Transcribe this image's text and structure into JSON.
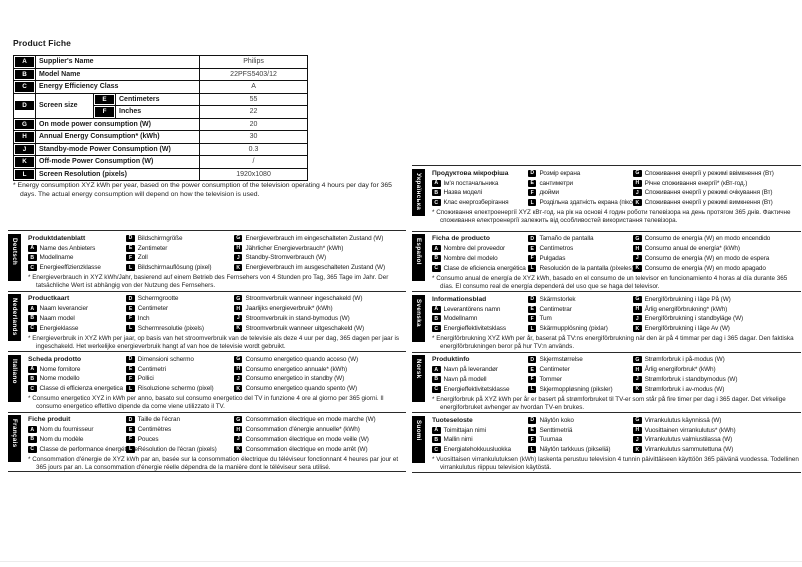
{
  "page": {
    "title": "Product Fiche"
  },
  "colors": {
    "badge_bg": "#000000",
    "badge_text": "#ffffff",
    "table_border": "#111111"
  },
  "fiche_table": {
    "rows": [
      {
        "key": "A",
        "label": "Supplier's Name",
        "value": "Philips"
      },
      {
        "key": "B",
        "label": "Model Name",
        "value": "22PFS5403/12"
      },
      {
        "key": "C",
        "label": "Energy Efficiency Class",
        "value": "A"
      },
      {
        "key": "D",
        "label": "Screen size",
        "sub": [
          {
            "key": "E",
            "label": "Centimeters",
            "value": "55"
          },
          {
            "key": "F",
            "label": "Inches",
            "value": "22"
          }
        ]
      },
      {
        "key": "G",
        "label": "On mode power consumption (W)",
        "value": "20"
      },
      {
        "key": "H",
        "label": "Annual Energy Consumption* (kWh)",
        "value": "30"
      },
      {
        "key": "J",
        "label": "Standby-mode Power Consumption (W)",
        "value": "0.3"
      },
      {
        "key": "K",
        "label": "Off-mode Power Consumption (W)",
        "value": "/"
      },
      {
        "key": "L",
        "label": "Screen Resolution (pixels)",
        "value": "1920x1080"
      }
    ],
    "footnote": "* Energy consumption XYZ kWh per year, based on the power consumption of the television operating 4 hours per day for 365 days. The actual energy consumption will depend on how the television is used."
  },
  "sections": {
    "left": [
      {
        "lang": "Deutsch",
        "title": "Produktdatenblatt",
        "col1": [
          {
            "key": "A",
            "label": "Name des Anbieters"
          },
          {
            "key": "B",
            "label": "Modellname"
          },
          {
            "key": "C",
            "label": "Energieeffizienzklasse"
          }
        ],
        "col2": [
          {
            "key": "D",
            "label": "Bildschirmgröße"
          },
          {
            "key": "E",
            "label": "Zentimeter"
          },
          {
            "key": "F",
            "label": "Zoll"
          },
          {
            "key": "L",
            "label": "Bildschirmauflösung (pixel)"
          }
        ],
        "col3": [
          {
            "key": "G",
            "label": "Energieverbrauch im eingeschalteten Zustand (W)"
          },
          {
            "key": "H",
            "label": "Jährlicher Energieverbrauch* (kWh)"
          },
          {
            "key": "J",
            "label": "Standby-Stromverbrauch (W)"
          },
          {
            "key": "K",
            "label": "Energieverbrauch im ausgeschalteten Zustand (W)"
          }
        ],
        "footnote": "* Energieverbrauch in XYZ kWh/Jahr, basierend auf einem Betrieb des Fernsehers von 4 Stunden pro Tag, 365 Tage im Jahr. Der tatsächliche Wert ist abhängig von der Nutzung des Fernsehers."
      },
      {
        "lang": "Nederlands",
        "title": "Productkaart",
        "col1": [
          {
            "key": "A",
            "label": "Naam leverancier"
          },
          {
            "key": "B",
            "label": "Naam model"
          },
          {
            "key": "C",
            "label": "Energieklasse"
          }
        ],
        "col2": [
          {
            "key": "D",
            "label": "Schermgrootte"
          },
          {
            "key": "E",
            "label": "Centimeter"
          },
          {
            "key": "F",
            "label": "Inch"
          },
          {
            "key": "L",
            "label": "Schermresolutie (pixels)"
          }
        ],
        "col3": [
          {
            "key": "G",
            "label": "Stroomverbruik wanneer ingeschakeld (W)"
          },
          {
            "key": "H",
            "label": "Jaarlijks energieverbruik* (kWh)"
          },
          {
            "key": "J",
            "label": "Stroomverbruik in stand-bymodus (W)"
          },
          {
            "key": "K",
            "label": "Stroomverbruik wanneer uitgeschakeld (W)"
          }
        ],
        "footnote": "* Energieverbruik in XYZ kWh per jaar, op basis van het stroomverbruik van de televisie als deze 4 uur per dag, 365 dagen per jaar is ingeschakeld. Het werkelijke energieverbruik hangt af van hoe de televisie wordt gebruikt."
      },
      {
        "lang": "Italiano",
        "title": "Scheda prodotto",
        "col1": [
          {
            "key": "A",
            "label": "Nome fornitore"
          },
          {
            "key": "B",
            "label": "Nome modello"
          },
          {
            "key": "C",
            "label": "Classe di efficienza energetica"
          }
        ],
        "col2": [
          {
            "key": "D",
            "label": "Dimensioni schermo"
          },
          {
            "key": "E",
            "label": "Centimetri"
          },
          {
            "key": "F",
            "label": "Pollici"
          },
          {
            "key": "L",
            "label": "Risoluzione schermo (pixel)"
          }
        ],
        "col3": [
          {
            "key": "G",
            "label": "Consumo energetico quando acceso (W)"
          },
          {
            "key": "H",
            "label": "Consumo energetico annuale* (kWh)"
          },
          {
            "key": "J",
            "label": "Consumo energetico in standby (W)"
          },
          {
            "key": "K",
            "label": "Consumo energetico quando spento (W)"
          }
        ],
        "footnote": "* Consumo energetico XYZ in kWh per anno, basato sul consumo energetico del TV in funzione 4 ore al giorno per 365 giorni. Il consumo energetico effettivo dipende da come viene utilizzato il TV."
      },
      {
        "lang": "Français",
        "title": "Fiche produit",
        "col1": [
          {
            "key": "A",
            "label": "Nom du fournisseur"
          },
          {
            "key": "B",
            "label": "Nom du modèle"
          },
          {
            "key": "C",
            "label": "Classe de performance énergétique"
          }
        ],
        "col2": [
          {
            "key": "D",
            "label": "Taille de l'écran"
          },
          {
            "key": "E",
            "label": "Centimètres"
          },
          {
            "key": "F",
            "label": "Pouces"
          },
          {
            "key": "L",
            "label": "Résolution de l'écran (pixels)"
          }
        ],
        "col3": [
          {
            "key": "G",
            "label": "Consommation électrique en mode marche (W)"
          },
          {
            "key": "H",
            "label": "Consommation d'énergie annuelle* (kWh)"
          },
          {
            "key": "J",
            "label": "Consommation électrique en mode veille (W)"
          },
          {
            "key": "K",
            "label": "Consommation électrique en mode arrêt (W)"
          }
        ],
        "footnote": "* Consommation d'énergie de XYZ kWh par an, basée sur la consommation électrique du téléviseur fonctionnant 4 heures par jour et 365 jours par an. La consommation d'énergie réelle dépendra de la manière dont le téléviseur sera utilisé."
      }
    ],
    "right": [
      {
        "lang": "Українська",
        "title": "Продуктова мікрофіша",
        "col1": [
          {
            "key": "A",
            "label": "Ім'я постачальника"
          },
          {
            "key": "B",
            "label": "Назва моделі"
          },
          {
            "key": "C",
            "label": "Клас енергозберігання"
          }
        ],
        "col2": [
          {
            "key": "D",
            "label": "Розмір екрана"
          },
          {
            "key": "E",
            "label": "сантиметри"
          },
          {
            "key": "F",
            "label": "дюйми"
          },
          {
            "key": "L",
            "label": "Роздільна здатність екрана (пікселі)"
          }
        ],
        "col3": [
          {
            "key": "G",
            "label": "Споживання енергії у режимі ввімкнення (Вт)"
          },
          {
            "key": "H",
            "label": "Річне споживання енергії* (кВт-год.)"
          },
          {
            "key": "J",
            "label": "Споживання енергії у режимі очікування (Вт)"
          },
          {
            "key": "K",
            "label": "Споживання енергії у режимі вимкнення (Вт)"
          }
        ],
        "footnote": "* Споживання електроенергії XYZ кВт-год. на рік на основі 4 годин роботи телевізора на день протягом 365 днів. Фактичне споживання електроенергії залежить від особливостей використання телевізора."
      },
      {
        "lang": "Español",
        "title": "Ficha de producto",
        "col1": [
          {
            "key": "A",
            "label": "Nombre del proveedor"
          },
          {
            "key": "B",
            "label": "Nombre del modelo"
          },
          {
            "key": "C",
            "label": "Clase de eficiencia energética"
          }
        ],
        "col2": [
          {
            "key": "D",
            "label": "Tamaño de pantalla"
          },
          {
            "key": "E",
            "label": "Centímetros"
          },
          {
            "key": "F",
            "label": "Pulgadas"
          },
          {
            "key": "L",
            "label": "Resolución de la pantalla (píxeles)"
          }
        ],
        "col3": [
          {
            "key": "G",
            "label": "Consumo de energía (W) en modo encendido"
          },
          {
            "key": "H",
            "label": "Consumo anual de energía* (kWh)"
          },
          {
            "key": "J",
            "label": "Consumo de energía (W) en modo de espera"
          },
          {
            "key": "K",
            "label": "Consumo de energía (W) en modo apagado"
          }
        ],
        "footnote": "* Consumo anual de energía de XYZ kWh, basado en el consumo de un televisor en funcionamiento 4 horas al día durante 365 días. El consumo real de energía dependerá del uso que se haga del televisor."
      },
      {
        "lang": "Svenska",
        "title": "Informationsblad",
        "col1": [
          {
            "key": "A",
            "label": "Leverantörens namn"
          },
          {
            "key": "B",
            "label": "Modellnamn"
          },
          {
            "key": "C",
            "label": "Energieffektivitetsklass"
          }
        ],
        "col2": [
          {
            "key": "D",
            "label": "Skärmstorlek"
          },
          {
            "key": "E",
            "label": "Centimetrar"
          },
          {
            "key": "F",
            "label": "Tum"
          },
          {
            "key": "L",
            "label": "Skärmupplösning (pixlar)"
          }
        ],
        "col3": [
          {
            "key": "G",
            "label": "Energiförbrukning i läge På (W)"
          },
          {
            "key": "H",
            "label": "Årlig energiförbrukning* (kWh)"
          },
          {
            "key": "J",
            "label": "Energiförbrukning i standbyläge (W)"
          },
          {
            "key": "K",
            "label": "Energiförbrukning i läge Av (W)"
          }
        ],
        "footnote": "* Energiförbrukning XYZ kWh per år, baserat på TV:ns energiförbrukning när den är på 4 timmar per dag i 365 dagar. Den faktiska energiförbrukningen beror på hur TV:n används."
      },
      {
        "lang": "Norsk",
        "title": "Produktinfo",
        "col1": [
          {
            "key": "A",
            "label": "Navn på leverandør"
          },
          {
            "key": "B",
            "label": "Navn på modell"
          },
          {
            "key": "C",
            "label": "Energieffektivitetsklasse"
          }
        ],
        "col2": [
          {
            "key": "D",
            "label": "Skjermstørrelse"
          },
          {
            "key": "E",
            "label": "Centimeter"
          },
          {
            "key": "F",
            "label": "Tommer"
          },
          {
            "key": "L",
            "label": "Skjermoppløsning (piksler)"
          }
        ],
        "col3": [
          {
            "key": "G",
            "label": "Strømforbruk i på-modus (W)"
          },
          {
            "key": "H",
            "label": "Årlig energiforbruk* (kWh)"
          },
          {
            "key": "J",
            "label": "Strømforbruk i standbymodus (W)"
          },
          {
            "key": "K",
            "label": "Strømforbruk i av-modus (W)"
          }
        ],
        "footnote": "* Energiforbruk på XYZ kWh per år er basert på strømforbruket til TV-er som står på fire timer per dag i 365 dager. Det virkelige energiforbruket avhenger av hvordan TV-en brukes."
      },
      {
        "lang": "Suomi",
        "title": "Tuoteseloste",
        "col1": [
          {
            "key": "A",
            "label": "Toimittajan nimi"
          },
          {
            "key": "B",
            "label": "Mallin nimi"
          },
          {
            "key": "C",
            "label": "Energiatehokkuusluokka"
          }
        ],
        "col2": [
          {
            "key": "D",
            "label": "Näytön koko"
          },
          {
            "key": "E",
            "label": "Senttimetriä"
          },
          {
            "key": "F",
            "label": "Tuumaa"
          },
          {
            "key": "L",
            "label": "Näytön tarkkuus (pikseliä)"
          }
        ],
        "col3": [
          {
            "key": "G",
            "label": "Virrankulutus käynnissä (W)"
          },
          {
            "key": "H",
            "label": "Vuosittainen virrankulutus* (kWh)"
          },
          {
            "key": "J",
            "label": "Virrankulutus valmiustilassa (W)"
          },
          {
            "key": "K",
            "label": "Virrankulutus sammutettuna (W)"
          }
        ],
        "footnote": "* Vuosittaisen virrankulutuksen (kWh) laskenta perustuu television 4 tunnin päivittäiseen käyttöön 365 päivänä vuodessa. Todellinen virrankulutus riippuu television käytöstä."
      }
    ]
  }
}
